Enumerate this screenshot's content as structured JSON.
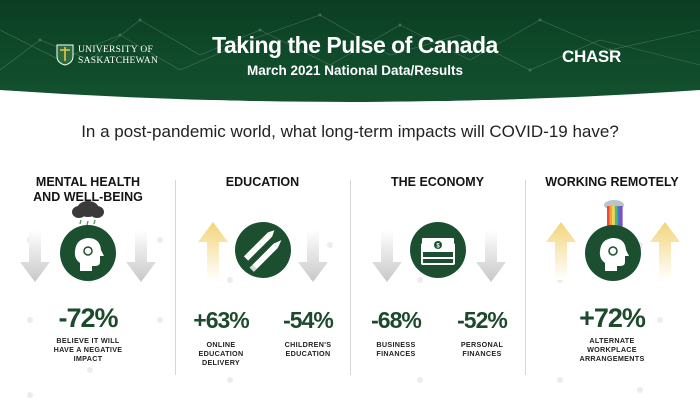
{
  "header": {
    "logo_line1": "UNIVERSITY OF",
    "logo_line2": "SASKATCHEWAN",
    "title": "Taking the Pulse of Canada",
    "subtitle": "March 2021 National Data/Results",
    "brand": "CHASR"
  },
  "question": "In a post-pandemic world, what long-term impacts will COVID-19 have?",
  "colors": {
    "header_green": "#0f4a2a",
    "icon_green": "#1c4f30",
    "percent_green": "#1d4a2c",
    "arrow_up_yellow": "#f2d57a",
    "arrow_down_gray": "#c8c8c8"
  },
  "sections": [
    {
      "title_line1": "MENTAL HEALTH",
      "title_line2": "AND WELL-BEING",
      "icon": "head-with-raincloud-icon",
      "stats": [
        {
          "value": "-72%",
          "direction": "down",
          "caption_line1": "BELIEVE IT WILL",
          "caption_line2": "HAVE A NEGATIVE",
          "caption_line3": "IMPACT"
        }
      ]
    },
    {
      "title_line1": "EDUCATION",
      "icon": "pen-and-pencil-icon",
      "stats": [
        {
          "value": "+63%",
          "direction": "up",
          "caption_line1": "ONLINE",
          "caption_line2": "EDUCATION",
          "caption_line3": "DELIVERY"
        },
        {
          "value": "-54%",
          "direction": "down",
          "caption_line1": "CHILDREN'S",
          "caption_line2": "EDUCATION"
        }
      ]
    },
    {
      "title_line1": "THE ECONOMY",
      "icon": "money-stack-icon",
      "stats": [
        {
          "value": "-68%",
          "direction": "down",
          "caption_line1": "BUSINESS",
          "caption_line2": "FINANCES"
        },
        {
          "value": "-52%",
          "direction": "down",
          "caption_line1": "PERSONAL",
          "caption_line2": "FINANCES"
        }
      ]
    },
    {
      "title_line1": "WORKING REMOTELY",
      "icon": "head-with-rainbow-icon",
      "stats": [
        {
          "value": "+72%",
          "direction": "up",
          "caption_line1": "ALTERNATE",
          "caption_line2": "WORKPLACE",
          "caption_line3": "ARRANGEMENTS"
        }
      ]
    }
  ]
}
